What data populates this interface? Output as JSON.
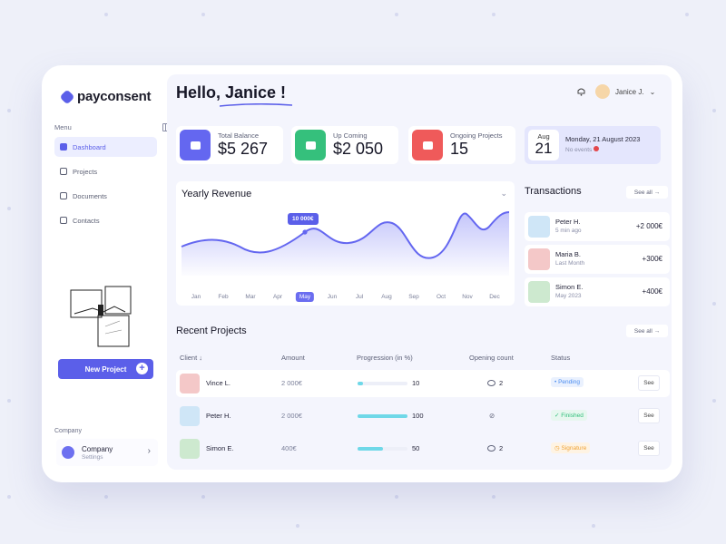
{
  "brand": {
    "name": "payconsent",
    "accent": "#5b5fe9"
  },
  "sidebar": {
    "menu_title": "Menu",
    "items": [
      {
        "label": "Dashboard",
        "icon": "dashboard-icon",
        "active": true
      },
      {
        "label": "Projects",
        "icon": "file-icon"
      },
      {
        "label": "Documents",
        "icon": "folder-icon"
      },
      {
        "label": "Contacts",
        "icon": "user-icon"
      }
    ],
    "new_project_label": "New Project",
    "company_title": "Company",
    "company_name": "Company",
    "company_sub": "Settings"
  },
  "header": {
    "greeting": "Hello, Janice !",
    "user_name": "Janice J."
  },
  "stats": [
    {
      "label": "Total Balance",
      "value": "$5 267",
      "color": "#5b5fe9"
    },
    {
      "label": "Up Coming",
      "value": "$2 050",
      "color": "#2fbf7a"
    },
    {
      "label": "Ongoing Projects",
      "value": "15",
      "color": "#ef5a5a"
    }
  ],
  "date_card": {
    "month": "Aug",
    "day": "21",
    "full": "Monday, 21 August 2023",
    "events": "No events"
  },
  "revenue": {
    "title": "Yearly Revenue",
    "tooltip": "10 000€",
    "months": [
      "Jan",
      "Feb",
      "Mar",
      "Apr",
      "May",
      "Jun",
      "Jul",
      "Aug",
      "Sep",
      "Oct",
      "Nov",
      "Dec"
    ],
    "active_month": "May"
  },
  "transactions": {
    "title": "Transactions",
    "see_all": "See all",
    "items": [
      {
        "name": "Peter H.",
        "time": "5 min ago",
        "amount": "+2 000€",
        "color": "#cfe6f7"
      },
      {
        "name": "Maria B.",
        "time": "Last Month",
        "amount": "+300€",
        "color": "#f4c8c8"
      },
      {
        "name": "Simon E.",
        "time": "May 2023",
        "amount": "+400€",
        "color": "#cde9cf"
      }
    ]
  },
  "projects": {
    "title": "Recent Projects",
    "see_all": "See all",
    "columns": [
      "Client",
      "Amount",
      "Progression (in %)",
      "Opening count",
      "Status"
    ],
    "rows": [
      {
        "client": "Vince L.",
        "amount": "2 000€",
        "progress": 10,
        "count": "2",
        "status": "Pending",
        "status_color": "#4a8cf0",
        "avatar_color": "#f4c8c8",
        "see": "See"
      },
      {
        "client": "Peter H.",
        "amount": "2 000€",
        "progress": 100,
        "count": "",
        "status": "Finished",
        "status_color": "#2fbf7a",
        "avatar_color": "#cfe6f7",
        "see": "See"
      },
      {
        "client": "Simon E.",
        "amount": "400€",
        "progress": 50,
        "count": "2",
        "status": "Signature",
        "status_color": "#f0a233",
        "avatar_color": "#cde9cf",
        "see": "See"
      }
    ]
  }
}
